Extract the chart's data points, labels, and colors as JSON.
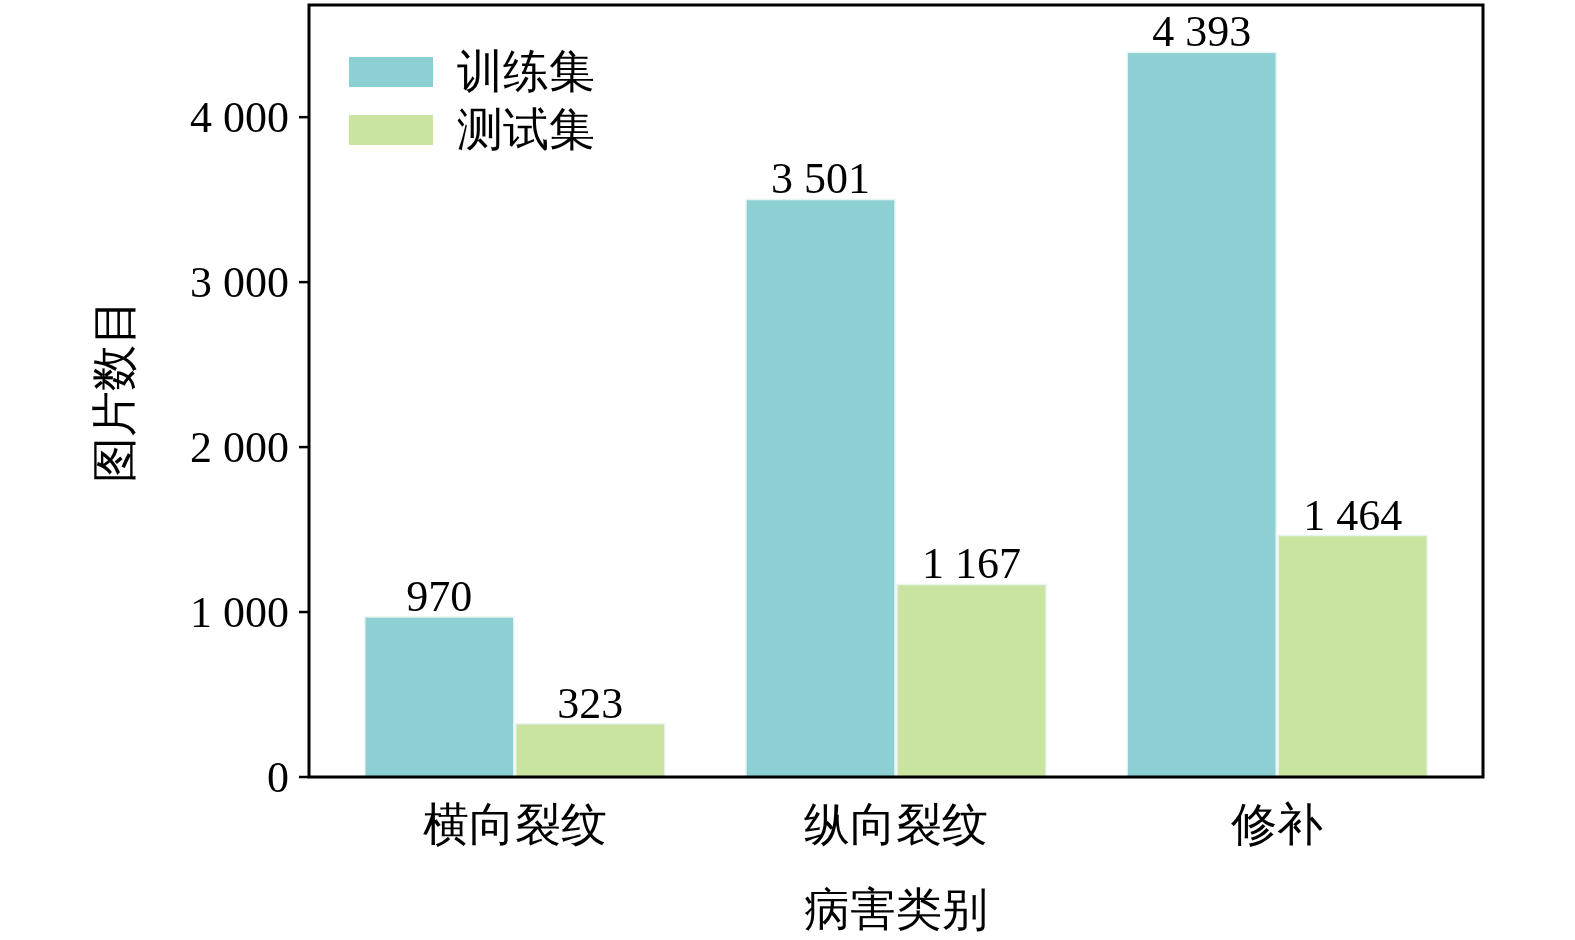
{
  "chart_data": {
    "type": "bar",
    "xlabel": "病害类别",
    "ylabel": "图片数目",
    "categories": [
      "横向裂纹",
      "纵向裂纹",
      "修补"
    ],
    "series": [
      {
        "name": "训练集",
        "color": "#8ecfd4",
        "values": [
          970,
          3501,
          4393
        ],
        "value_labels": [
          "970",
          "3 501",
          "4 393"
        ]
      },
      {
        "name": "测试集",
        "color": "#c9e4a0",
        "values": [
          323,
          1167,
          1464
        ],
        "value_labels": [
          "323",
          "1 167",
          "1 464"
        ]
      }
    ],
    "ylim": [
      0,
      4680
    ],
    "yticks": [
      0,
      {
        "value": 1000,
        "label": "1 000"
      },
      {
        "value": 2000,
        "label": "2 000"
      },
      {
        "value": 3000,
        "label": "3 000"
      },
      {
        "value": 4000,
        "label": "4 000"
      }
    ],
    "legend": "top left",
    "grid": false
  }
}
